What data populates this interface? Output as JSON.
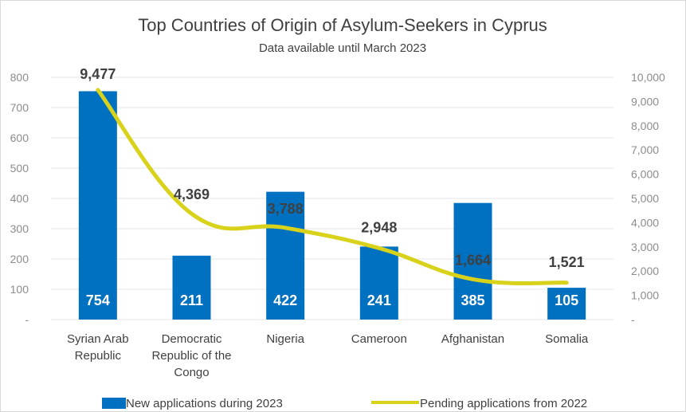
{
  "chart_data": {
    "type": "bar",
    "title": "Top Countries of Origin of Asylum-Seekers in Cyprus",
    "subtitle": "Data available until March 2023",
    "categories": [
      [
        "Syrian Arab",
        "Republic"
      ],
      [
        "Democratic",
        "Republic of the",
        "Congo"
      ],
      [
        "Nigeria"
      ],
      [
        "Cameroon"
      ],
      [
        "Afghanistan"
      ],
      [
        "Somalia"
      ]
    ],
    "series": [
      {
        "name": "New applications during 2023",
        "type": "bar",
        "axis": "left",
        "values": [
          754,
          211,
          422,
          241,
          385,
          105
        ],
        "labels": [
          "754",
          "211",
          "422",
          "241",
          "385",
          "105"
        ],
        "color": "#0070C0"
      },
      {
        "name": "Pending applications from 2022",
        "type": "line",
        "axis": "right",
        "values": [
          9477,
          4369,
          3788,
          2948,
          1664,
          1521
        ],
        "labels": [
          "9,477",
          "4,369",
          "3,788",
          "2,948",
          "1,664",
          "1,521"
        ],
        "color": "#D9D21B"
      }
    ],
    "y_left": {
      "range": [
        0,
        800
      ],
      "ticks": [
        "-",
        "100",
        "200",
        "300",
        "400",
        "500",
        "600",
        "700",
        "800"
      ]
    },
    "y_right": {
      "range": [
        0,
        10000
      ],
      "ticks": [
        "-",
        "1,000",
        "2,000",
        "3,000",
        "4,000",
        "5,000",
        "6,000",
        "7,000",
        "8,000",
        "9,000",
        "10,000"
      ]
    },
    "grid": true,
    "legend": "bottom",
    "grid_color": "#e6e6e6",
    "axis_text_color": "#8c8c8c",
    "text_color": "#404040"
  }
}
